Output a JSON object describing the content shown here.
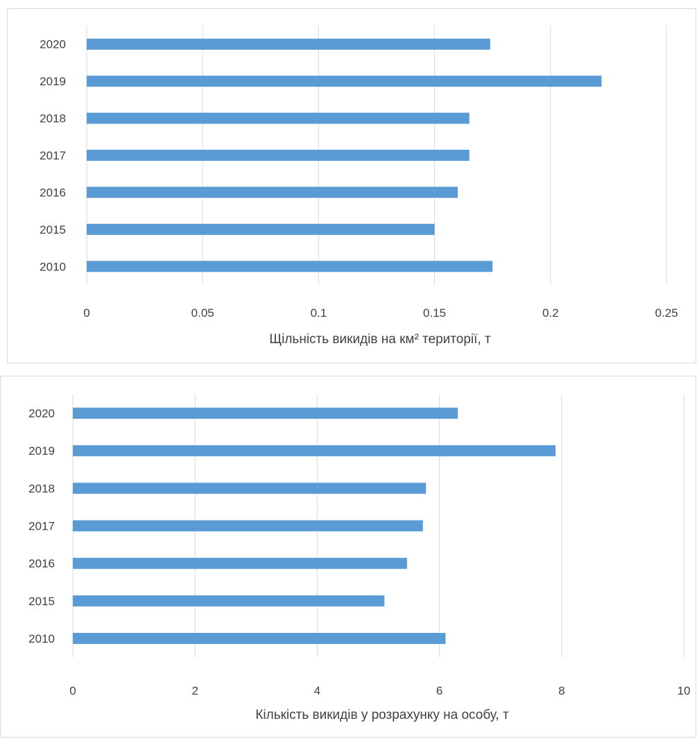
{
  "chart_data": [
    {
      "type": "bar",
      "orientation": "horizontal",
      "categories": [
        "2010",
        "2015",
        "2016",
        "2017",
        "2018",
        "2019",
        "2020"
      ],
      "values": [
        0.175,
        0.15,
        0.16,
        0.165,
        0.165,
        0.222,
        0.174
      ],
      "xlabel": "Щільність викидів на км² території, т",
      "xlim": [
        0,
        0.25
      ],
      "xticks": [
        "0",
        "0.05",
        "0.1",
        "0.15",
        "0.2",
        "0.25"
      ],
      "grid": "vertical",
      "color": "#5b9bd5"
    },
    {
      "type": "bar",
      "orientation": "horizontal",
      "categories": [
        "2010",
        "2015",
        "2016",
        "2017",
        "2018",
        "2019",
        "2020"
      ],
      "values": [
        6.1,
        5.1,
        5.47,
        5.73,
        5.78,
        7.9,
        6.3
      ],
      "xlabel": "Кількість викидів у розрахунку на особу, т",
      "xlim": [
        0,
        10
      ],
      "xticks": [
        "0",
        "2",
        "4",
        "6",
        "8",
        "10"
      ],
      "grid": "vertical",
      "color": "#5b9bd5"
    }
  ]
}
